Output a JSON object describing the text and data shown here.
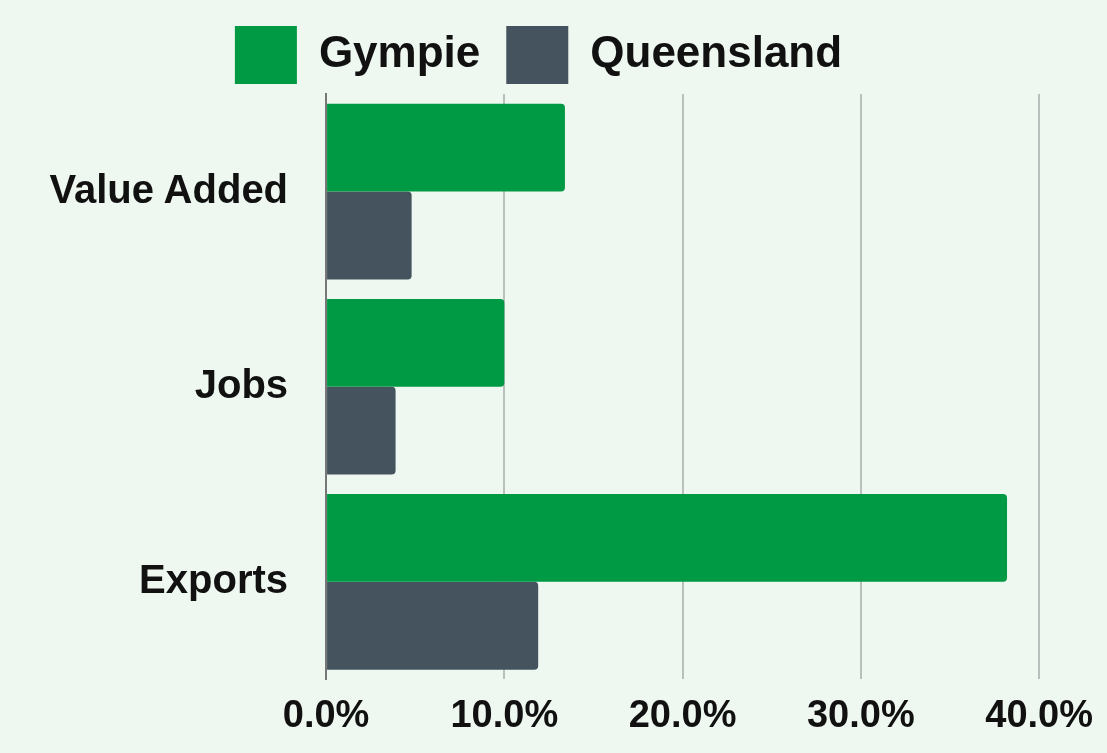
{
  "chart_data": {
    "type": "bar",
    "orientation": "horizontal",
    "categories": [
      "Value Added",
      "Jobs",
      "Exports"
    ],
    "series": [
      {
        "name": "Gympie",
        "color": "#009a44",
        "values": [
          13.4,
          10.0,
          38.2
        ]
      },
      {
        "name": "Queensland",
        "color": "#45535f",
        "values": [
          4.8,
          3.9,
          11.9
        ]
      }
    ],
    "xlim": [
      0,
      40
    ],
    "xticks": [
      {
        "value": 0,
        "label": "0.0%"
      },
      {
        "value": 10,
        "label": "10.0%"
      },
      {
        "value": 20,
        "label": "20.0%"
      },
      {
        "value": 30,
        "label": "30.0%"
      },
      {
        "value": 40,
        "label": "40.0%"
      }
    ],
    "grid": "x",
    "legend": "top"
  }
}
